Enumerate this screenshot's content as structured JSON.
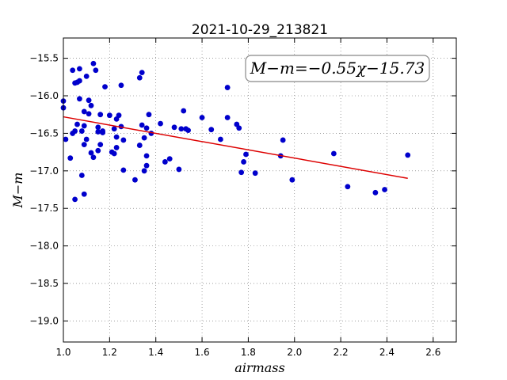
{
  "chart_data": {
    "type": "scatter",
    "title": "2021-10-29_213821",
    "xlabel": "airmass",
    "ylabel": "M−m",
    "xlim": [
      1.0,
      2.7
    ],
    "ylim": [
      -19.28,
      -15.23
    ],
    "y_inverted": true,
    "grid": true,
    "x_ticks": [
      "1.0",
      "1.2",
      "1.4",
      "1.6",
      "1.8",
      "2.0",
      "2.2",
      "2.4",
      "2.6"
    ],
    "y_ticks": [
      "−15.5",
      "−16.0",
      "−16.5",
      "−17.0",
      "−17.5",
      "−18.0",
      "−18.5",
      "−19.0"
    ],
    "annotation": "M−m=−0.55χ−15.73",
    "fit": {
      "slope": -0.55,
      "intercept": -15.73,
      "x_range": [
        1.0,
        2.49
      ],
      "color": "#dd0000"
    },
    "point_color": "#0000cc",
    "points": [
      [
        1.0,
        -16.07
      ],
      [
        1.0,
        -16.16
      ],
      [
        1.01,
        -16.58
      ],
      [
        1.03,
        -16.83
      ],
      [
        1.04,
        -16.5
      ],
      [
        1.04,
        -15.66
      ],
      [
        1.05,
        -16.47
      ],
      [
        1.05,
        -17.38
      ],
      [
        1.05,
        -15.83
      ],
      [
        1.06,
        -16.38
      ],
      [
        1.06,
        -15.82
      ],
      [
        1.07,
        -15.64
      ],
      [
        1.07,
        -16.04
      ],
      [
        1.07,
        -15.8
      ],
      [
        1.08,
        -16.47
      ],
      [
        1.08,
        -17.06
      ],
      [
        1.09,
        -16.21
      ],
      [
        1.09,
        -16.4
      ],
      [
        1.09,
        -16.65
      ],
      [
        1.09,
        -17.31
      ],
      [
        1.1,
        -16.58
      ],
      [
        1.1,
        -15.74
      ],
      [
        1.11,
        -16.24
      ],
      [
        1.11,
        -16.06
      ],
      [
        1.12,
        -16.13
      ],
      [
        1.12,
        -16.76
      ],
      [
        1.13,
        -15.57
      ],
      [
        1.13,
        -16.82
      ],
      [
        1.14,
        -15.66
      ],
      [
        1.15,
        -16.42
      ],
      [
        1.15,
        -16.48
      ],
      [
        1.15,
        -16.73
      ],
      [
        1.16,
        -16.25
      ],
      [
        1.16,
        -16.65
      ],
      [
        1.17,
        -16.49
      ],
      [
        1.17,
        -16.47
      ],
      [
        1.18,
        -15.88
      ],
      [
        1.2,
        -16.26
      ],
      [
        1.21,
        -16.75
      ],
      [
        1.22,
        -16.77
      ],
      [
        1.22,
        -16.44
      ],
      [
        1.23,
        -16.31
      ],
      [
        1.23,
        -16.69
      ],
      [
        1.23,
        -16.55
      ],
      [
        1.24,
        -16.26
      ],
      [
        1.25,
        -15.86
      ],
      [
        1.25,
        -16.41
      ],
      [
        1.26,
        -16.99
      ],
      [
        1.26,
        -16.59
      ],
      [
        1.31,
        -17.12
      ],
      [
        1.33,
        -16.66
      ],
      [
        1.33,
        -15.76
      ],
      [
        1.34,
        -16.39
      ],
      [
        1.34,
        -15.69
      ],
      [
        1.35,
        -16.56
      ],
      [
        1.35,
        -17.0
      ],
      [
        1.36,
        -16.8
      ],
      [
        1.36,
        -16.93
      ],
      [
        1.36,
        -16.43
      ],
      [
        1.37,
        -16.25
      ],
      [
        1.38,
        -16.5
      ],
      [
        1.42,
        -16.37
      ],
      [
        1.44,
        -16.88
      ],
      [
        1.46,
        -16.84
      ],
      [
        1.48,
        -16.42
      ],
      [
        1.5,
        -16.98
      ],
      [
        1.51,
        -16.44
      ],
      [
        1.52,
        -16.2
      ],
      [
        1.53,
        -16.44
      ],
      [
        1.54,
        -16.46
      ],
      [
        1.6,
        -16.29
      ],
      [
        1.64,
        -16.45
      ],
      [
        1.68,
        -16.58
      ],
      [
        1.71,
        -15.89
      ],
      [
        1.71,
        -16.29
      ],
      [
        1.75,
        -16.38
      ],
      [
        1.76,
        -16.43
      ],
      [
        1.77,
        -17.02
      ],
      [
        1.78,
        -16.88
      ],
      [
        1.79,
        -16.78
      ],
      [
        1.83,
        -17.03
      ],
      [
        1.94,
        -16.8
      ],
      [
        1.95,
        -16.59
      ],
      [
        1.99,
        -17.12
      ],
      [
        2.17,
        -16.77
      ],
      [
        2.23,
        -17.21
      ],
      [
        2.35,
        -17.29
      ],
      [
        2.39,
        -17.25
      ],
      [
        2.49,
        -16.79
      ]
    ]
  }
}
